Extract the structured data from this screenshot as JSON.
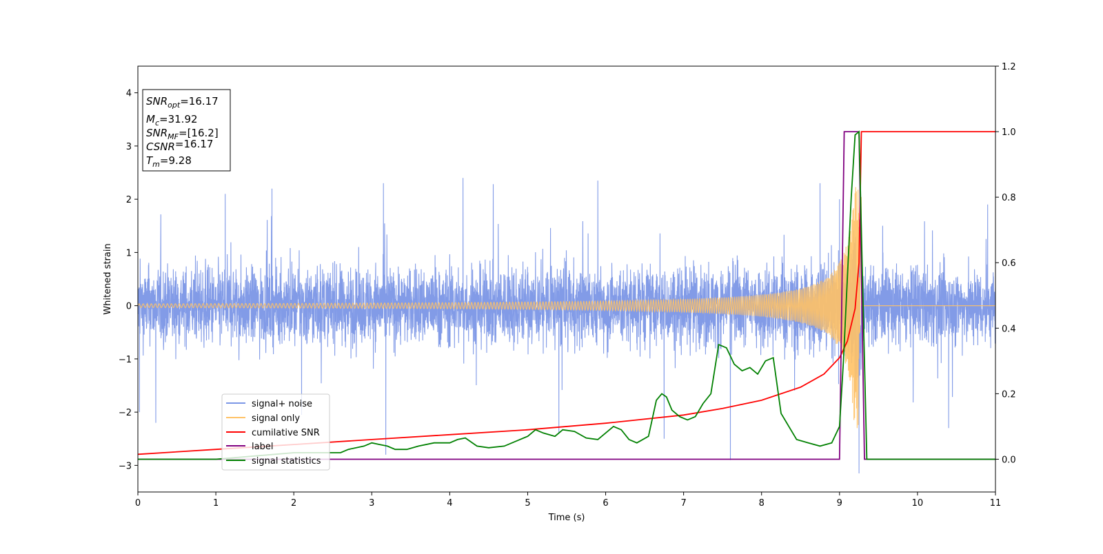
{
  "chart_data": {
    "type": "line",
    "xlabel": "Time (s)",
    "ylabel": "Whitened strain",
    "xlim": [
      0,
      11
    ],
    "ylim": [
      -3.5,
      4.5
    ],
    "y2lim": [
      -0.1,
      1.2
    ],
    "xticks": [
      0,
      1,
      2,
      3,
      4,
      5,
      6,
      7,
      8,
      9,
      10,
      11
    ],
    "yticks": [
      -3,
      -2,
      -1,
      0,
      1,
      2,
      3,
      4
    ],
    "y2ticks": [
      0.0,
      0.2,
      0.4,
      0.6,
      0.8,
      1.0,
      1.2
    ],
    "xtick_labels": [
      "0",
      "1",
      "2",
      "3",
      "4",
      "5",
      "6",
      "7",
      "8",
      "9",
      "10",
      "11"
    ],
    "ytick_labels": [
      "−3",
      "−2",
      "−1",
      "0",
      "1",
      "2",
      "3",
      "4"
    ],
    "y2tick_labels": [
      "0.0",
      "0.2",
      "0.4",
      "0.6",
      "0.8",
      "1.0",
      "1.2"
    ],
    "grid": false,
    "legend_position": "lower-left",
    "annotation": {
      "lines": [
        {
          "base": "SNR",
          "sub": "opt",
          "value": "=16.17"
        },
        {
          "base": "M",
          "sub": "c",
          "value": "=31.92"
        },
        {
          "base": "SNR",
          "sub": "MF",
          "value": "=[16.2]"
        },
        {
          "base": "CSNR",
          "sub": "",
          "value": "=16.17"
        },
        {
          "base": "T",
          "sub": "m",
          "value": "=9.28"
        }
      ]
    },
    "series": [
      {
        "name": "signal+ noise",
        "color": "#7b96e6",
        "axis": "left",
        "kind": "noise",
        "amplitude_typical": 0.9,
        "envelope_max": 2.4,
        "spikes": [
          [
            0.02,
            -2.0
          ],
          [
            0.23,
            -2.2
          ],
          [
            1.12,
            2.1
          ],
          [
            1.72,
            2.2
          ],
          [
            2.1,
            -2.05
          ],
          [
            3.18,
            -2.8
          ],
          [
            3.15,
            2.3
          ],
          [
            4.17,
            2.4
          ],
          [
            5.4,
            -2.4
          ],
          [
            5.9,
            2.35
          ],
          [
            6.75,
            -2.5
          ],
          [
            7.6,
            -2.9
          ],
          [
            8.75,
            2.3
          ],
          [
            9.0,
            2.0
          ],
          [
            9.25,
            -3.15
          ],
          [
            10.4,
            -2.3
          ],
          [
            10.9,
            1.9
          ]
        ]
      },
      {
        "name": "signal only",
        "color": "#ffc266",
        "axis": "left",
        "kind": "chirp",
        "t_merger": 9.28,
        "peak_amplitude": 2.3
      },
      {
        "name": "cumilative SNR",
        "color": "#ff0000",
        "axis": "right",
        "x": [
          0,
          1,
          2,
          3,
          4,
          5,
          6,
          7,
          7.5,
          8,
          8.5,
          8.8,
          9.0,
          9.1,
          9.2,
          9.25,
          9.28,
          9.3,
          11
        ],
        "y": [
          0.015,
          0.03,
          0.045,
          0.06,
          0.075,
          0.09,
          0.11,
          0.135,
          0.155,
          0.18,
          0.22,
          0.26,
          0.31,
          0.36,
          0.46,
          0.6,
          1.0,
          1.0,
          1.0
        ]
      },
      {
        "name": "label",
        "color": "#800080",
        "axis": "right",
        "x": [
          0,
          9.0,
          9.06,
          9.25,
          9.32,
          11
        ],
        "y": [
          0,
          0,
          1.0,
          1.0,
          0,
          0
        ]
      },
      {
        "name": "signal statistics",
        "color": "#008000",
        "axis": "right",
        "x": [
          0,
          1,
          2,
          2.6,
          2.7,
          2.9,
          3.0,
          3.1,
          3.2,
          3.3,
          3.45,
          3.6,
          3.8,
          4.0,
          4.1,
          4.2,
          4.35,
          4.5,
          4.7,
          4.9,
          5.0,
          5.1,
          5.2,
          5.35,
          5.45,
          5.6,
          5.75,
          5.9,
          6.0,
          6.1,
          6.2,
          6.3,
          6.4,
          6.55,
          6.65,
          6.72,
          6.78,
          6.85,
          6.95,
          7.05,
          7.15,
          7.25,
          7.35,
          7.45,
          7.55,
          7.65,
          7.75,
          7.85,
          7.95,
          8.05,
          8.15,
          8.25,
          8.35,
          8.45,
          8.6,
          8.75,
          8.9,
          9.0,
          9.05,
          9.1,
          9.15,
          9.2,
          9.25,
          9.3,
          9.35,
          11
        ],
        "y": [
          0,
          0.0,
          0.02,
          0.02,
          0.03,
          0.04,
          0.05,
          0.045,
          0.04,
          0.03,
          0.03,
          0.04,
          0.05,
          0.05,
          0.06,
          0.065,
          0.04,
          0.035,
          0.04,
          0.06,
          0.07,
          0.09,
          0.08,
          0.07,
          0.09,
          0.085,
          0.065,
          0.06,
          0.08,
          0.1,
          0.09,
          0.06,
          0.05,
          0.07,
          0.18,
          0.2,
          0.19,
          0.15,
          0.13,
          0.12,
          0.13,
          0.17,
          0.2,
          0.35,
          0.34,
          0.29,
          0.27,
          0.28,
          0.26,
          0.3,
          0.31,
          0.14,
          0.1,
          0.06,
          0.05,
          0.04,
          0.05,
          0.1,
          0.3,
          0.55,
          0.8,
          0.99,
          1.0,
          0.5,
          0.0,
          0.0
        ]
      }
    ]
  }
}
